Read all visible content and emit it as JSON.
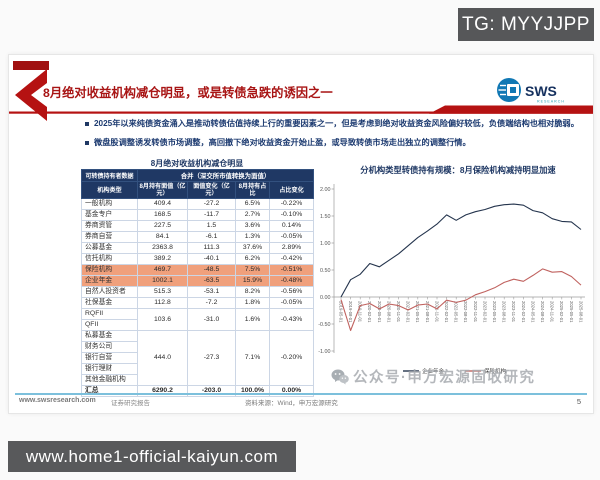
{
  "page": {
    "tg_badge": "TG: MYYJJPP",
    "bottom_url": "www.home1-official-kaiyun.com"
  },
  "colors": {
    "accent_red": "#b51212",
    "navy": "#1f3864",
    "highlight_row": "#f0a07c",
    "footer_line": "#7cc0dc"
  },
  "slide": {
    "header": {
      "title": "8月绝对收益机构减仓明显，或是转债急跌的诱因之一",
      "logo_text": "SWS",
      "logo_subtext": "RESEARCH"
    },
    "bullets": [
      "2025年以来纯债资金涌入是推动转债估值持续上行的重要因素之一，但是考虑到绝对收益资金风险偏好较低，负债端结构也相对脆弱。",
      "微盘股调整诱发转债市场调整，高回撤下绝对收益资金开始止盈，或导致转债市场走出独立的调整行情。"
    ],
    "table": {
      "title": "8月绝对收益机构减仓明显",
      "corner_header": "可转债持有者数据",
      "group_header": "合并（深交所市值转换为面值）",
      "col_label_header": "机构类型",
      "col_headers": [
        "8月持有面值（亿元）",
        "面值变化（亿元）",
        "8月持有占比",
        "占比变化"
      ],
      "groups": [
        {
          "labels": [
            "一般机构"
          ],
          "face": "409.4",
          "chg": "-27.2",
          "pct": "6.5%",
          "pctchg": "-0.22%",
          "highlight": false,
          "total": false
        },
        {
          "labels": [
            "基金专户"
          ],
          "face": "168.5",
          "chg": "-11.7",
          "pct": "2.7%",
          "pctchg": "-0.10%",
          "highlight": false,
          "total": false
        },
        {
          "labels": [
            "券商资管"
          ],
          "face": "227.5",
          "chg": "1.5",
          "pct": "3.6%",
          "pctchg": "0.14%",
          "highlight": false,
          "total": false
        },
        {
          "labels": [
            "券商自营"
          ],
          "face": "84.1",
          "chg": "-6.1",
          "pct": "1.3%",
          "pctchg": "-0.05%",
          "highlight": false,
          "total": false
        },
        {
          "labels": [
            "公募基金"
          ],
          "face": "2363.8",
          "chg": "111.3",
          "pct": "37.6%",
          "pctchg": "2.89%",
          "highlight": false,
          "total": false
        },
        {
          "labels": [
            "信托机构"
          ],
          "face": "389.2",
          "chg": "-40.1",
          "pct": "6.2%",
          "pctchg": "-0.42%",
          "highlight": false,
          "total": false
        },
        {
          "labels": [
            "保险机构"
          ],
          "face": "469.7",
          "chg": "-48.5",
          "pct": "7.5%",
          "pctchg": "-0.51%",
          "highlight": true,
          "total": false
        },
        {
          "labels": [
            "企业年金"
          ],
          "face": "1002.1",
          "chg": "-63.5",
          "pct": "15.9%",
          "pctchg": "-0.48%",
          "highlight": true,
          "total": false
        },
        {
          "labels": [
            "自然人投资者"
          ],
          "face": "515.3",
          "chg": "-53.1",
          "pct": "8.2%",
          "pctchg": "-0.56%",
          "highlight": false,
          "total": false
        },
        {
          "labels": [
            "社保基金"
          ],
          "face": "112.8",
          "chg": "-7.2",
          "pct": "1.8%",
          "pctchg": "-0.05%",
          "highlight": false,
          "total": false
        },
        {
          "labels": [
            "RQFII",
            "QFII"
          ],
          "face": "103.6",
          "chg": "-31.0",
          "pct": "1.6%",
          "pctchg": "-0.43%",
          "highlight": false,
          "total": false
        },
        {
          "labels": [
            "私募基金",
            "财务公司",
            "银行自营",
            "银行理财",
            "其他金融机构"
          ],
          "face": "444.0",
          "chg": "-27.3",
          "pct": "7.1%",
          "pctchg": "-0.20%",
          "highlight": false,
          "total": false
        },
        {
          "labels": [
            "汇总"
          ],
          "face": "6290.2",
          "chg": "-203.0",
          "pct": "100.0%",
          "pctchg": "0.00%",
          "highlight": false,
          "total": true
        }
      ]
    },
    "watermark": "公众号·申万宏源固收研究",
    "footer": {
      "site": "www.swsresearch.com",
      "doc_type": "证券研究报告",
      "source": "资料来源：Wind，申万宏源研究",
      "page_number": "5"
    }
  },
  "chart_data": {
    "type": "line",
    "title": "分机构类型转债持有规模：8月保险机构减持明显加速",
    "xlabel": "",
    "ylabel": "",
    "ylim": [
      -1.0,
      2.0
    ],
    "grid": false,
    "legend_position": "bottom",
    "y_ticks": [
      "2.00",
      "1.50",
      "1.00",
      "0.50",
      "0.00",
      "-0.50",
      "-1.00"
    ],
    "x": [
      "2019-05-01",
      "2019-08-01",
      "2019-11-01",
      "2020-02-01",
      "2020-05-01",
      "2020-08-01",
      "2020-11-01",
      "2021-02-01",
      "2021-05-01",
      "2021-08-01",
      "2021-11-01",
      "2022-02-01",
      "2022-05-01",
      "2022-08-01",
      "2022-11-01",
      "2023-02-01",
      "2023-05-01",
      "2023-08-01",
      "2023-11-01",
      "2024-02-01",
      "2024-05-01",
      "2024-08-01",
      "2024-11-01",
      "2025-02-01",
      "2025-05-01",
      "2025-08-01"
    ],
    "series": [
      {
        "name": "企业年金",
        "color": "#24344d",
        "values": [
          0.0,
          0.32,
          0.42,
          0.62,
          0.56,
          0.68,
          0.8,
          0.95,
          1.1,
          1.22,
          1.35,
          1.52,
          1.42,
          1.52,
          1.58,
          1.62,
          1.68,
          1.71,
          1.72,
          1.7,
          1.6,
          1.56,
          1.45,
          1.4,
          1.39,
          1.25
        ]
      },
      {
        "name": "保险机构",
        "color": "#c0625f",
        "values": [
          -0.05,
          -0.62,
          -0.16,
          -0.12,
          -0.22,
          -0.13,
          -0.16,
          -0.24,
          -0.15,
          -0.13,
          -0.22,
          -0.06,
          -0.1,
          -0.06,
          0.04,
          0.1,
          0.17,
          0.27,
          0.33,
          0.29,
          0.4,
          0.52,
          0.46,
          0.47,
          0.38,
          0.22
        ]
      }
    ]
  }
}
